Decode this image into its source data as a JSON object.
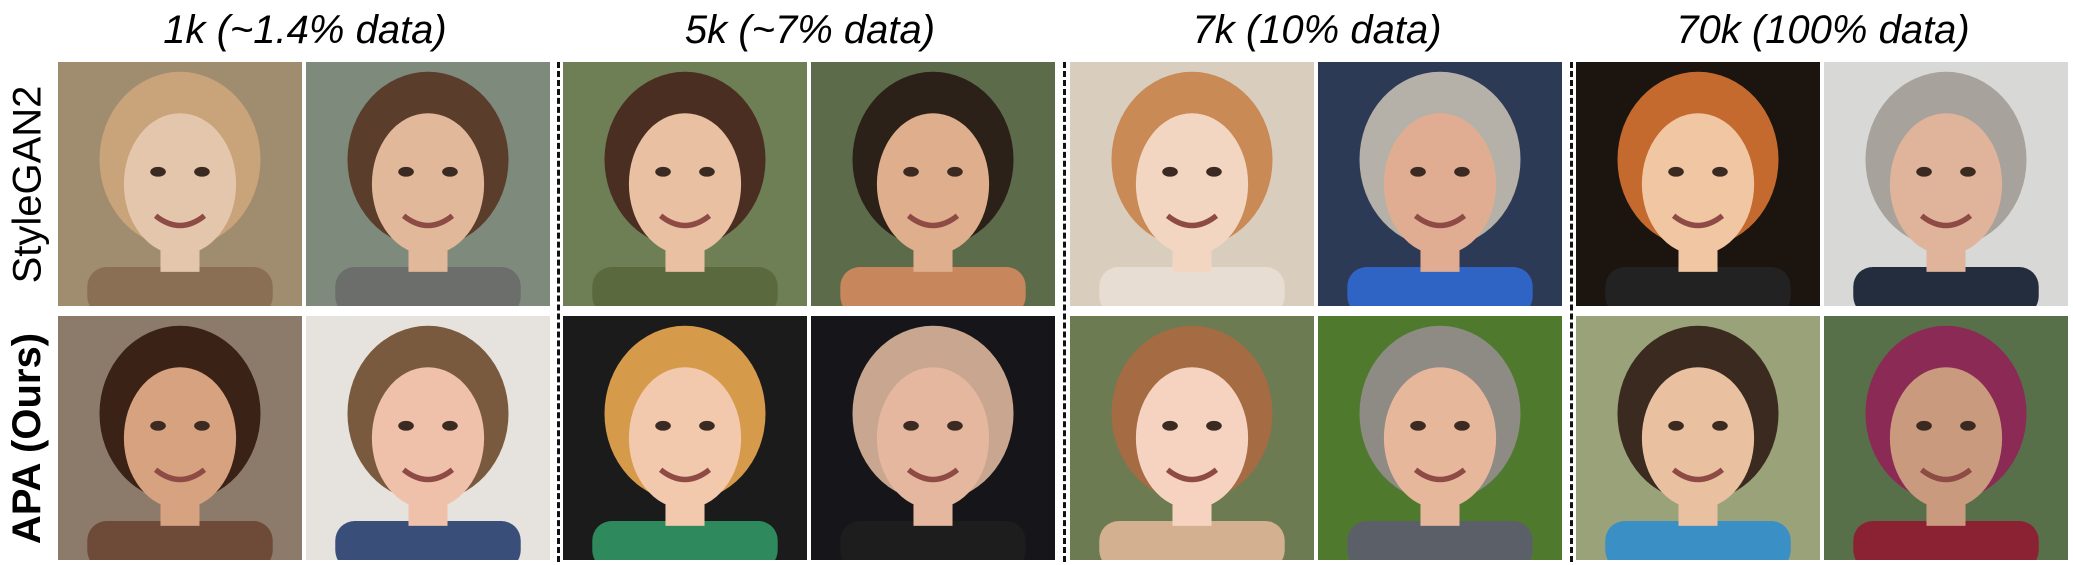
{
  "columns": [
    {
      "title": "1k (~1.4% data)"
    },
    {
      "title": "5k (~7% data)"
    },
    {
      "title": "7k (10% data)"
    },
    {
      "title": "70k (100% data)"
    }
  ],
  "rows": [
    {
      "label": "StyleGAN2"
    },
    {
      "label": "APA (Ours)"
    }
  ]
}
